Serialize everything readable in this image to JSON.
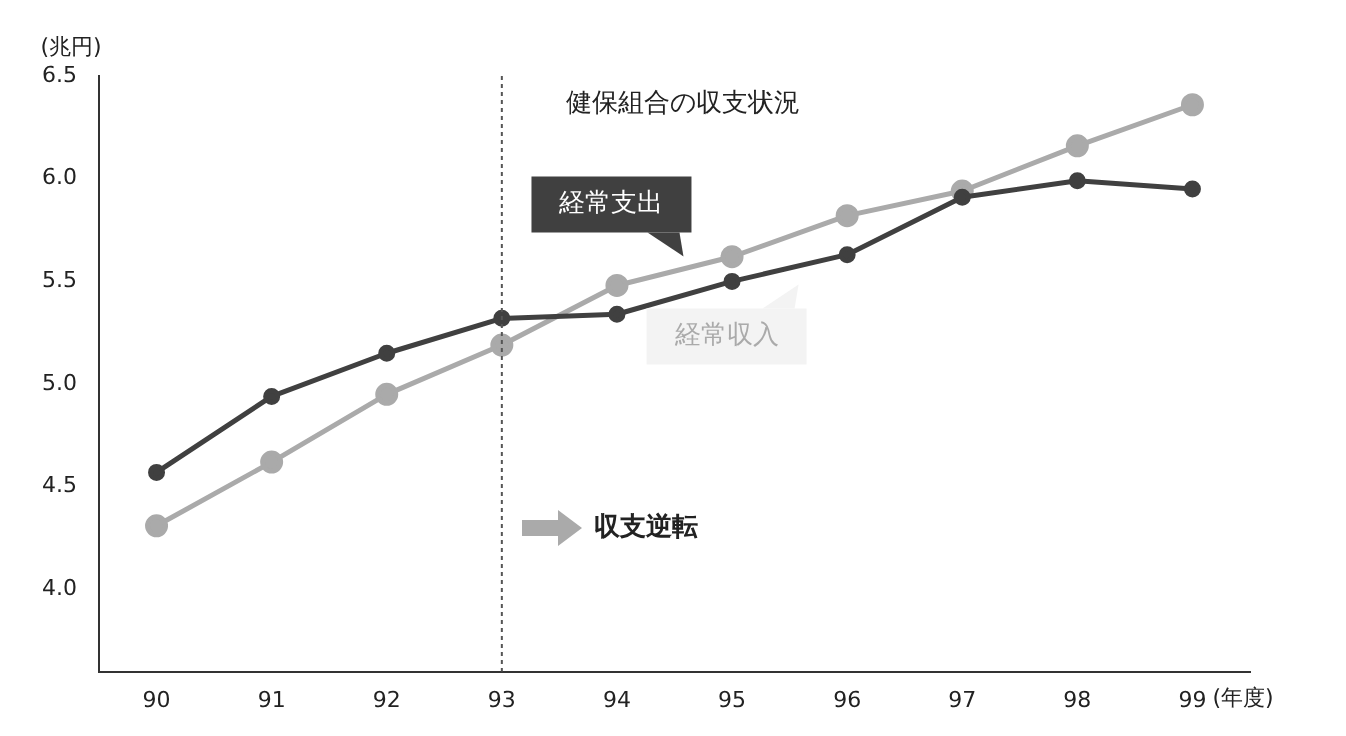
{
  "chart_data": {
    "type": "line",
    "title": "健保組合の収支状況",
    "ylabel": "(兆円)",
    "xlabel": "(年度)",
    "categories": [
      "90",
      "91",
      "92",
      "93",
      "94",
      "95",
      "96",
      "97",
      "98",
      "99"
    ],
    "series": [
      {
        "name": "経常支出",
        "color": "#404040",
        "values": [
          4.57,
          4.94,
          5.15,
          5.32,
          5.34,
          5.5,
          5.63,
          5.91,
          5.99,
          5.95
        ]
      },
      {
        "name": "経常収入",
        "color": "#aaaaaa",
        "values": [
          4.31,
          4.62,
          4.95,
          5.19,
          5.48,
          5.62,
          5.82,
          5.94,
          6.16,
          6.36
        ]
      }
    ],
    "ylim": [
      3.6,
      6.5
    ],
    "yticks": [
      {
        "value": 4,
        "label": "4.0"
      },
      {
        "value": 4.5,
        "label": "4.5"
      },
      {
        "value": 5,
        "label": "5.0"
      },
      {
        "value": 5.5,
        "label": "5.5"
      },
      {
        "value": 6,
        "label": "6.0"
      },
      {
        "value": 6.5,
        "label": "6.5"
      }
    ],
    "ref_lines": [
      {
        "axis": "x",
        "value": "93",
        "line_style": "dotted",
        "color": "#555555"
      }
    ],
    "annotations": [
      "収支逆転"
    ],
    "grid": false,
    "legend": false,
    "marker": "circle",
    "line_style": "solid"
  }
}
